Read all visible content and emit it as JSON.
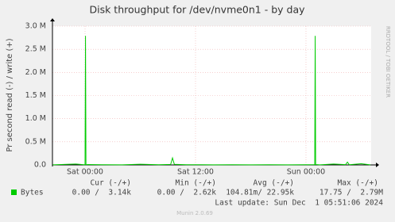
{
  "chart_data": {
    "type": "line",
    "title": "Disk throughput for /dev/nvme0n1 - by day",
    "y_label": "Pr second read (-) / write (+)",
    "side_text": "RRDTOOL / TOBI OETIKER",
    "x": [
      -3.5,
      -2,
      -1,
      -0.1,
      0,
      0.05,
      0.1,
      0.3,
      2,
      4,
      6,
      8,
      9.3,
      9.5,
      9.7,
      11,
      14,
      16,
      18,
      20,
      22,
      24,
      24.95,
      25,
      25.05,
      25.5,
      27,
      28.3,
      28.5,
      28.7,
      30,
      31
    ],
    "series": [
      {
        "name": "Bytes",
        "color": "#00cc00",
        "values": [
          3000,
          12000,
          20000,
          4000,
          6000,
          2790000,
          5000,
          8000,
          4000,
          3000,
          15000,
          5000,
          10000,
          150000,
          12000,
          4000,
          3000,
          5000,
          2000,
          4000,
          3000,
          5000,
          6000,
          2790000,
          8000,
          3000,
          20000,
          6000,
          60000,
          5000,
          25000,
          3000
        ]
      }
    ],
    "xlim": [
      -3.54,
      31.08
    ],
    "ylim": [
      0,
      3000000
    ],
    "xticks": [
      {
        "value": 0,
        "label": "Sat 00:00"
      },
      {
        "value": 12,
        "label": "Sat 12:00"
      },
      {
        "value": 24,
        "label": "Sun 00:00"
      }
    ],
    "yticks": [
      {
        "value": 0,
        "label": "0.0"
      },
      {
        "value": 500000,
        "label": "0.5 M"
      },
      {
        "value": 1000000,
        "label": "1.0 M"
      },
      {
        "value": 1500000,
        "label": "1.5 M"
      },
      {
        "value": 2000000,
        "label": "2.0 M"
      },
      {
        "value": 2500000,
        "label": "2.5 M"
      },
      {
        "value": 3000000,
        "label": "3.0 M"
      }
    ],
    "grid": true,
    "legend": {
      "headers": [
        "Cur (-/+)",
        "Min (-/+)",
        "Avg (-/+)",
        "Max (-/+)"
      ],
      "cells": [
        "0.00 /  3.14k",
        "0.00 /  2.62k",
        "104.81m/ 22.95k",
        "17.75 /  2.79M"
      ]
    },
    "last_update": "Last update: Sun Dec  1 05:51:06 2024",
    "footer": "Munin 2.0.69"
  }
}
